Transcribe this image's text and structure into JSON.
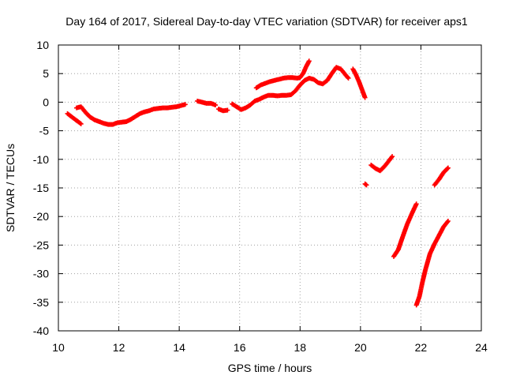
{
  "chart_data": {
    "type": "scatter",
    "title": "Day 164 of 2017, Sidereal Day-to-day VTEC variation (SDTVAR) for receiver aps1",
    "xlabel": "GPS time / hours",
    "ylabel": "SDTVAR / TECUs",
    "xlim": [
      10,
      24
    ],
    "ylim": [
      -40,
      10
    ],
    "xticks": [
      "10",
      "12",
      "14",
      "16",
      "18",
      "20",
      "22",
      "24"
    ],
    "yticks": [
      "10",
      "5",
      "0",
      "-5",
      "-10",
      "-15",
      "-20",
      "-25",
      "-30",
      "-35",
      "-40"
    ],
    "grid": true,
    "marker": "plus",
    "color": "#ff0000",
    "series": [
      {
        "segments": [
          [
            [
              10.3,
              -2.0
            ],
            [
              10.45,
              -2.6
            ],
            [
              10.6,
              -3.2
            ],
            [
              10.75,
              -3.8
            ]
          ],
          [
            [
              10.6,
              -1.0
            ],
            [
              10.75,
              -0.8
            ],
            [
              10.9,
              -1.8
            ],
            [
              11.05,
              -2.6
            ],
            [
              11.2,
              -3.1
            ],
            [
              11.35,
              -3.4
            ],
            [
              11.5,
              -3.7
            ],
            [
              11.65,
              -3.9
            ],
            [
              11.8,
              -3.9
            ],
            [
              11.95,
              -3.6
            ],
            [
              12.1,
              -3.5
            ],
            [
              12.25,
              -3.4
            ],
            [
              12.4,
              -3.0
            ],
            [
              12.55,
              -2.5
            ],
            [
              12.7,
              -2.0
            ],
            [
              12.85,
              -1.7
            ],
            [
              13.0,
              -1.5
            ],
            [
              13.15,
              -1.2
            ],
            [
              13.3,
              -1.1
            ],
            [
              13.45,
              -1.0
            ],
            [
              13.6,
              -1.0
            ],
            [
              13.75,
              -0.9
            ],
            [
              13.9,
              -0.8
            ],
            [
              14.05,
              -0.6
            ],
            [
              14.2,
              -0.4
            ]
          ],
          [
            [
              14.6,
              0.2
            ],
            [
              14.75,
              0.0
            ],
            [
              14.9,
              -0.2
            ],
            [
              15.05,
              -0.2
            ],
            [
              15.2,
              -0.5
            ]
          ],
          [
            [
              15.3,
              -1.2
            ],
            [
              15.45,
              -1.5
            ],
            [
              15.6,
              -1.4
            ]
          ],
          [
            [
              15.75,
              -0.3
            ],
            [
              15.9,
              -0.8
            ],
            [
              16.05,
              -1.3
            ],
            [
              16.2,
              -1.0
            ],
            [
              16.35,
              -0.5
            ],
            [
              16.5,
              0.2
            ],
            [
              16.65,
              0.5
            ],
            [
              16.8,
              0.9
            ],
            [
              16.95,
              1.2
            ],
            [
              17.1,
              1.2
            ],
            [
              17.25,
              1.1
            ],
            [
              17.4,
              1.2
            ],
            [
              17.55,
              1.2
            ],
            [
              17.7,
              1.3
            ],
            [
              17.85,
              2.0
            ],
            [
              18.0,
              3.0
            ],
            [
              18.15,
              3.8
            ],
            [
              18.3,
              4.2
            ],
            [
              18.45,
              4.0
            ],
            [
              18.6,
              3.4
            ],
            [
              18.75,
              3.2
            ],
            [
              18.9,
              3.8
            ],
            [
              19.05,
              5.0
            ],
            [
              19.2,
              6.1
            ],
            [
              19.35,
              5.8
            ],
            [
              19.5,
              4.8
            ],
            [
              19.6,
              4.2
            ]
          ],
          [
            [
              16.55,
              2.5
            ],
            [
              16.7,
              3.0
            ],
            [
              16.85,
              3.3
            ],
            [
              17.0,
              3.6
            ],
            [
              17.15,
              3.8
            ],
            [
              17.3,
              4.0
            ],
            [
              17.45,
              4.2
            ],
            [
              17.6,
              4.3
            ],
            [
              17.75,
              4.3
            ],
            [
              17.9,
              4.2
            ],
            [
              18.0,
              4.3
            ],
            [
              18.1,
              5.0
            ],
            [
              18.2,
              6.2
            ],
            [
              18.3,
              7.2
            ]
          ],
          [
            [
              19.75,
              5.8
            ],
            [
              19.85,
              4.8
            ],
            [
              19.95,
              3.6
            ],
            [
              20.05,
              2.2
            ],
            [
              20.15,
              0.8
            ]
          ],
          [
            [
              20.15,
              -14.3
            ],
            [
              20.2,
              -14.5
            ]
          ],
          [
            [
              20.35,
              -11.0
            ],
            [
              20.5,
              -11.6
            ],
            [
              20.65,
              -12.0
            ],
            [
              20.8,
              -11.2
            ],
            [
              20.95,
              -10.2
            ],
            [
              21.05,
              -9.5
            ]
          ],
          [
            [
              21.1,
              -27.0
            ],
            [
              21.25,
              -25.8
            ],
            [
              21.4,
              -23.5
            ],
            [
              21.55,
              -21.3
            ],
            [
              21.7,
              -19.5
            ],
            [
              21.85,
              -17.8
            ]
          ],
          [
            [
              21.85,
              -35.5
            ],
            [
              21.95,
              -34.0
            ],
            [
              22.05,
              -31.5
            ],
            [
              22.15,
              -29.3
            ],
            [
              22.3,
              -26.5
            ],
            [
              22.45,
              -24.8
            ],
            [
              22.6,
              -23.3
            ],
            [
              22.75,
              -21.8
            ],
            [
              22.9,
              -20.8
            ]
          ],
          [
            [
              22.45,
              -14.5
            ],
            [
              22.6,
              -13.5
            ],
            [
              22.75,
              -12.3
            ],
            [
              22.9,
              -11.5
            ]
          ]
        ]
      }
    ]
  }
}
